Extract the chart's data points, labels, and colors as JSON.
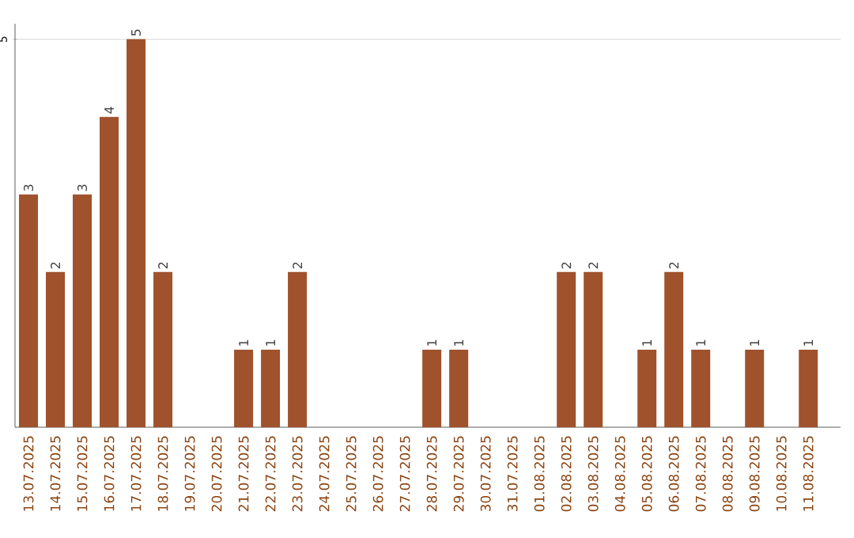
{
  "chart_data": {
    "type": "bar",
    "categories": [
      "13.07.2025",
      "14.07.2025",
      "15.07.2025",
      "16.07.2025",
      "17.07.2025",
      "18.07.2025",
      "19.07.2025",
      "20.07.2025",
      "21.07.2025",
      "22.07.2025",
      "23.07.2025",
      "24.07.2025",
      "25.07.2025",
      "26.07.2025",
      "27.07.2025",
      "28.07.2025",
      "29.07.2025",
      "30.07.2025",
      "31.07.2025",
      "01.08.2025",
      "02.08.2025",
      "03.08.2025",
      "04.08.2025",
      "05.08.2025",
      "06.08.2025",
      "07.08.2025",
      "08.08.2025",
      "09.08.2025",
      "10.08.2025",
      "11.08.2025"
    ],
    "values": [
      3,
      2,
      3,
      4,
      5,
      2,
      0,
      0,
      1,
      1,
      2,
      0,
      0,
      0,
      0,
      1,
      1,
      0,
      0,
      0,
      2,
      2,
      0,
      1,
      2,
      1,
      0,
      1,
      0,
      1
    ],
    "value_labels": [
      "3",
      "2",
      "3",
      "4",
      "5",
      "2",
      null,
      null,
      "1",
      "1",
      "2",
      null,
      null,
      null,
      null,
      "1",
      "1",
      null,
      null,
      null,
      "2",
      "2",
      null,
      "1",
      "2",
      "1",
      null,
      "1",
      null,
      "1"
    ],
    "color": "#a0522d",
    "ylim": [
      0,
      5.2
    ],
    "yticks": [
      5
    ],
    "grid": "y"
  }
}
